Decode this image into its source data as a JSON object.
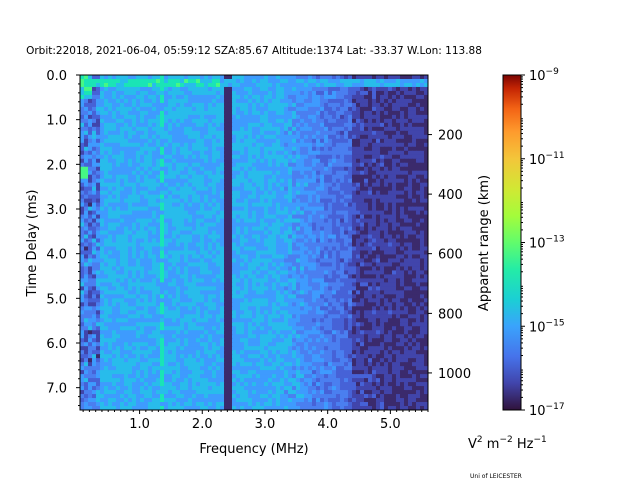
{
  "chart_data": {
    "type": "heatmap",
    "title": "Orbit:22018, 2021-06-04, 05:59:12 SZA:85.67 Altitude:1374 Lat: -33.37 W.Lon: 113.88",
    "xlabel": "Frequency (MHz)",
    "ylabel": "Time Delay (ms)",
    "y2label": "Apparent range (km)",
    "xlim": [
      0.05,
      5.6
    ],
    "ylim": [
      7.5,
      0.0
    ],
    "x_ticks": [
      1.0,
      2.0,
      3.0,
      4.0,
      5.0
    ],
    "x_tick_labels": [
      "1.0",
      "2.0",
      "3.0",
      "4.0",
      "5.0"
    ],
    "y_ticks": [
      0.0,
      1.0,
      2.0,
      3.0,
      4.0,
      5.0,
      6.0,
      7.0
    ],
    "y_tick_labels": [
      "0.0",
      "1.0",
      "2.0",
      "3.0",
      "4.0",
      "5.0",
      "6.0",
      "7.0"
    ],
    "y2_ticks_delay_ms": [
      1.334,
      2.667,
      4.0,
      5.337,
      6.67
    ],
    "y2_tick_labels": [
      "200",
      "400",
      "600",
      "800",
      "1000"
    ],
    "colorscale": "turbo",
    "colorbar_range": [
      1e-17,
      1e-09
    ],
    "colorbar_ticks_exp": [
      -17,
      -15,
      -13,
      -11,
      -9
    ],
    "colorbar_tick_labels": [
      "10",
      "10",
      "10",
      "10",
      "10"
    ],
    "colorbar_tick_exponents": [
      "−17",
      "−15",
      "−13",
      "−11",
      "−9"
    ],
    "colorbar_units": {
      "v": "V",
      "v_exp": "2",
      "m": "m",
      "m_exp": "−2",
      "hz": "Hz",
      "hz_exp": "−1"
    },
    "credit": "Uni of LEICESTER",
    "features": {
      "bright_delay_band_ms": 0.17,
      "vertical_line_freq_mhz": 2.4,
      "faint_line_freq_mhz": 1.35
    }
  }
}
